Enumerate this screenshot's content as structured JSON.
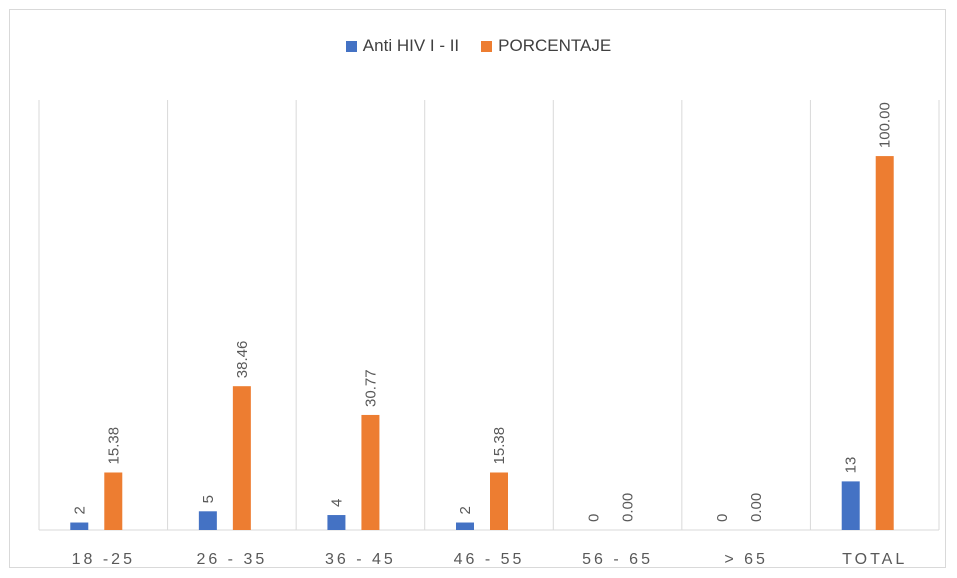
{
  "chart_data": {
    "type": "bar",
    "categories": [
      "18 -25",
      "26 - 35",
      "36 - 45",
      "46 - 55",
      "56 - 65",
      "> 65",
      "TOTAL"
    ],
    "series": [
      {
        "name": "Anti HIV I - II",
        "color": "#4472C4",
        "values": [
          2,
          5,
          4,
          2,
          0,
          0,
          13
        ],
        "labels": [
          "2",
          "5",
          "4",
          "2",
          "0",
          "0",
          "13"
        ]
      },
      {
        "name": "PORCENTAJE",
        "color": "#ED7D31",
        "values": [
          15.38,
          38.46,
          30.77,
          15.38,
          0.0,
          0.0,
          100.0
        ],
        "labels": [
          "15.38",
          "38.46",
          "30.77",
          "15.38",
          "0.00",
          "0.00",
          "100.00"
        ]
      }
    ],
    "title": "",
    "xlabel": "",
    "ylabel": "",
    "ylim": [
      0,
      115
    ],
    "grid": "vertical category separators",
    "legend": "top-center",
    "data_labels": "rotated 90°"
  }
}
